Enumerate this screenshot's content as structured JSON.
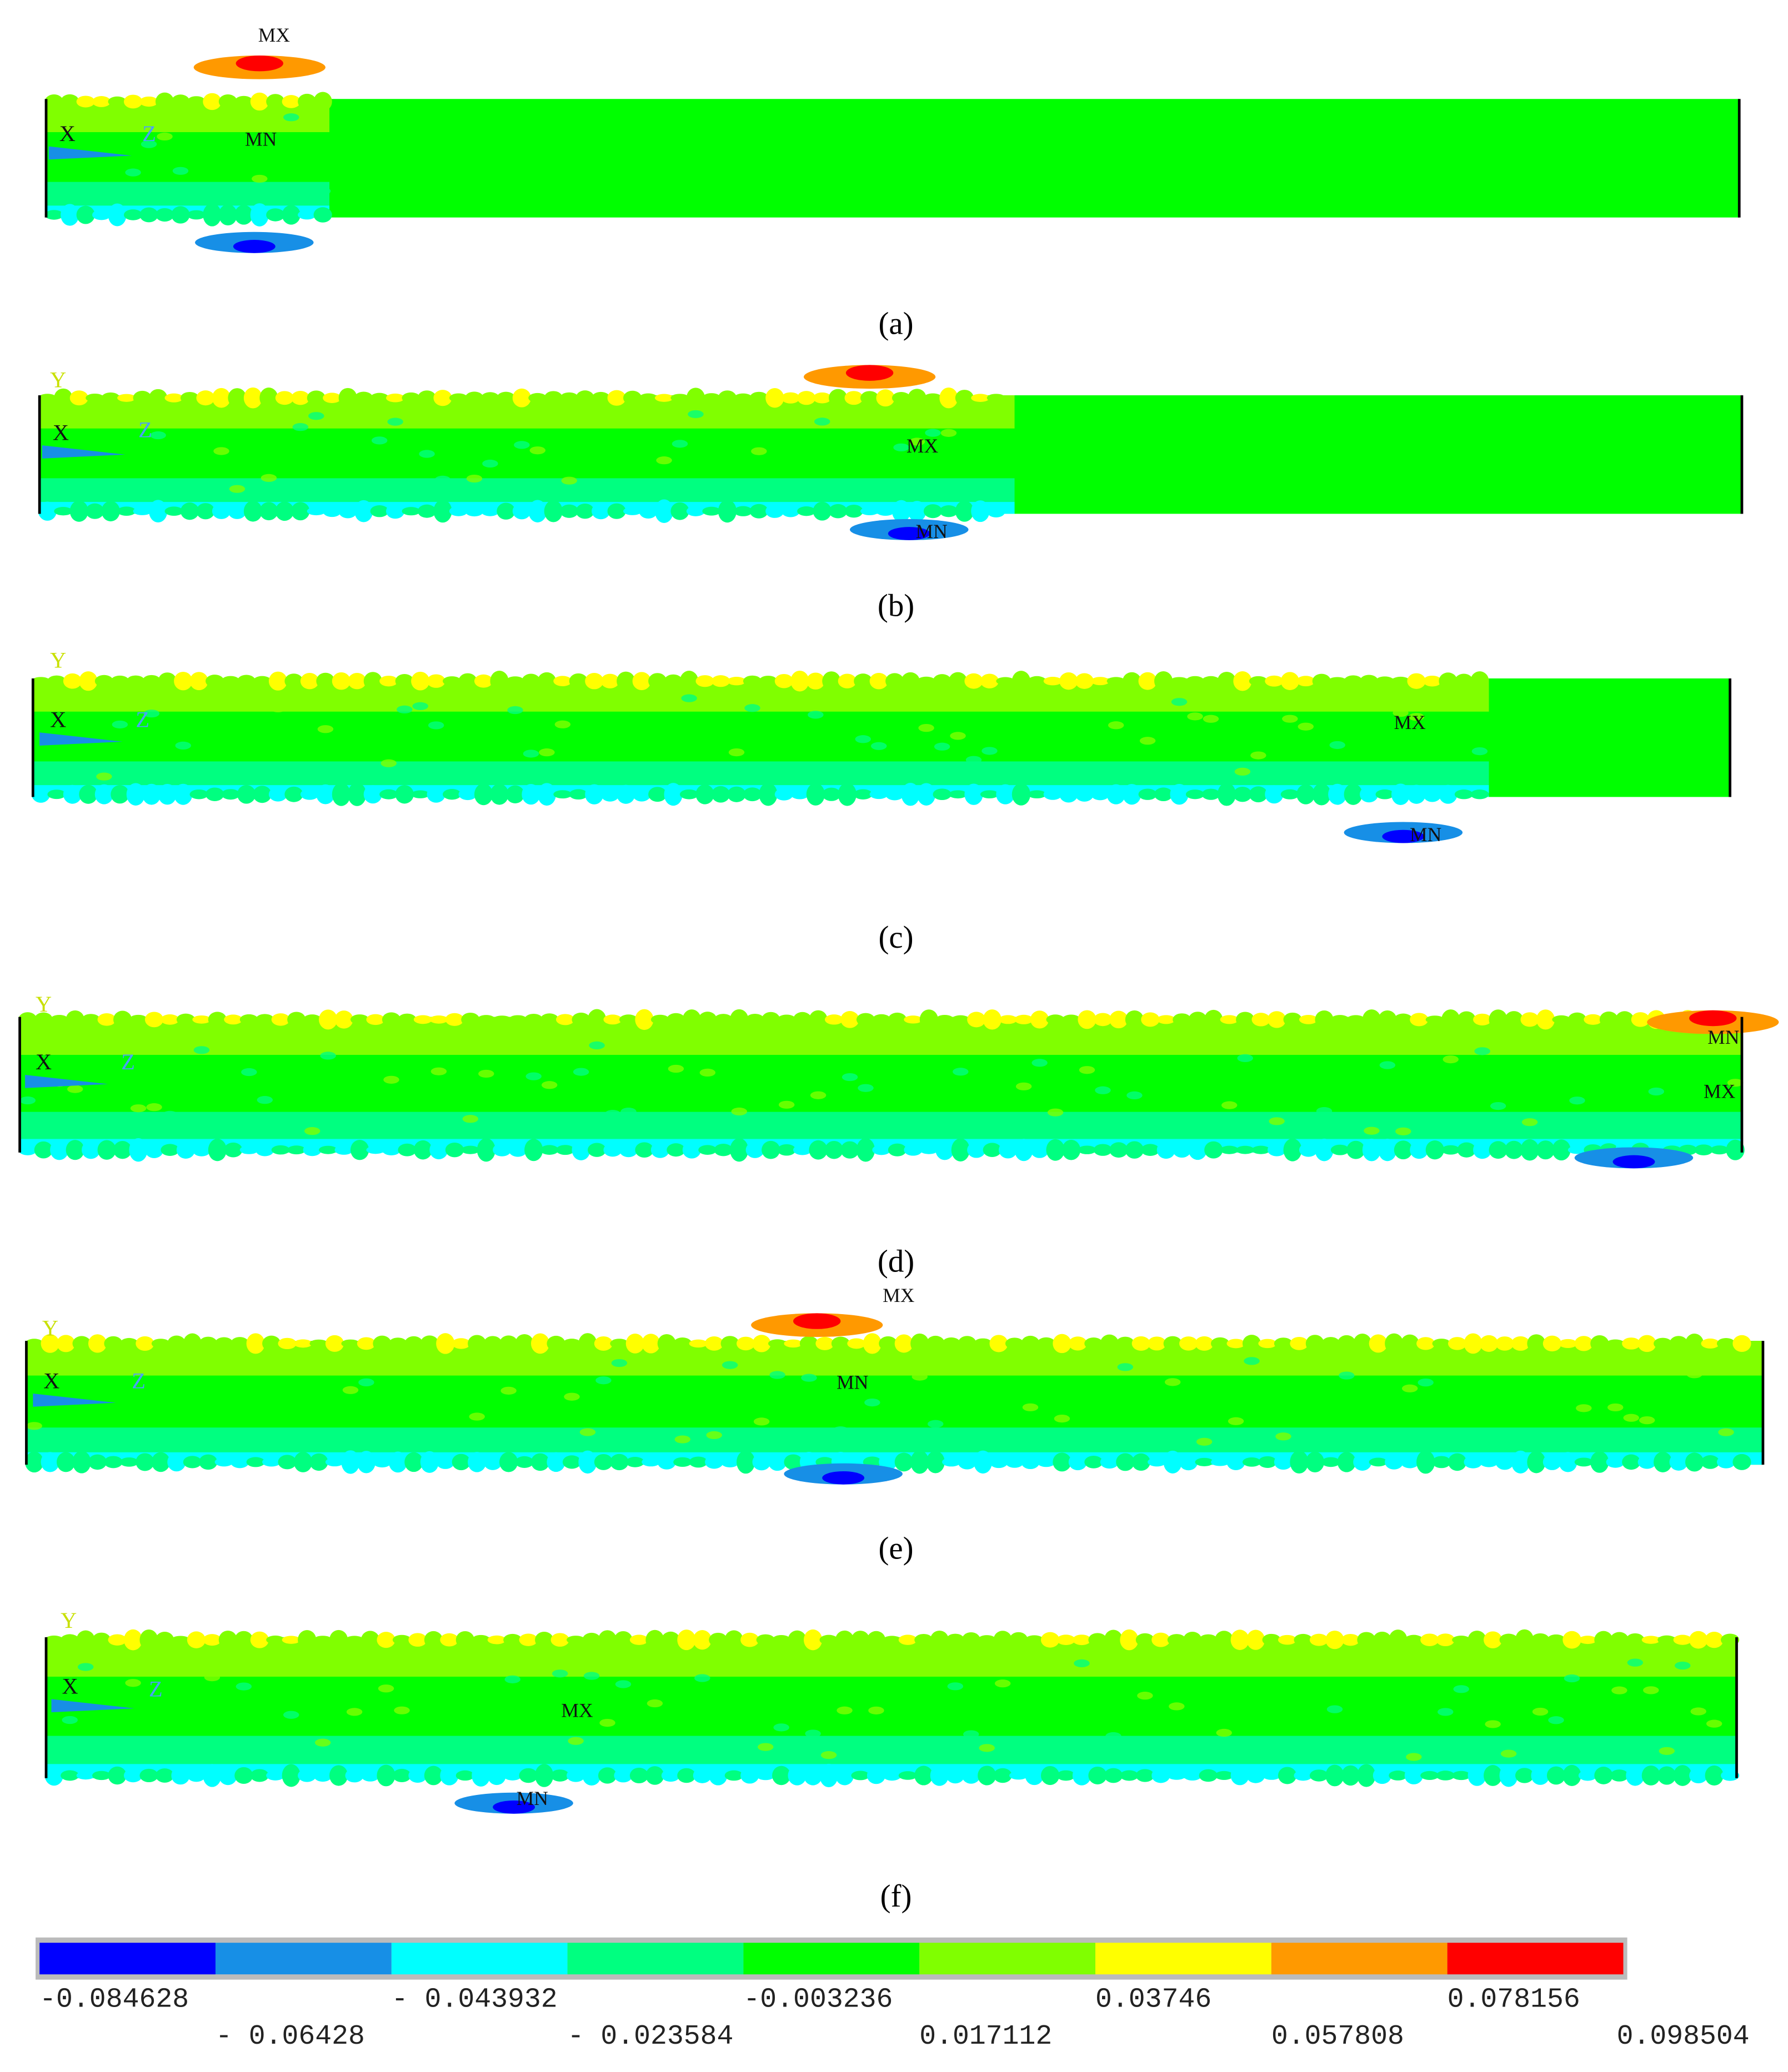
{
  "panels": [
    {
      "caption": "(a)",
      "max_label": "MX",
      "min_label": "MN",
      "axes": [
        "X",
        "Z"
      ]
    },
    {
      "caption": "(b)",
      "max_label": "MX",
      "min_label": "MN",
      "axes": [
        "Y",
        "X",
        "Z"
      ]
    },
    {
      "caption": "(c)",
      "max_label": "MX",
      "min_label": "MN",
      "axes": [
        "Y",
        "X",
        "Z"
      ]
    },
    {
      "caption": "(d)",
      "max_label": "MX",
      "min_label": "MN",
      "axes": [
        "Y",
        "X",
        "Z"
      ]
    },
    {
      "caption": "(e)",
      "max_label": "MX",
      "min_label": "MN",
      "axes": [
        "Y",
        "X",
        "Z"
      ]
    },
    {
      "caption": "(f)",
      "max_label": "MX",
      "min_label": "MN",
      "axes": [
        "Y",
        "X",
        "Z"
      ]
    }
  ],
  "colorbar": {
    "colors": [
      "#0000ff",
      "#178fe6",
      "#00ffff",
      "#00ff80",
      "#00ff00",
      "#80ff00",
      "#ffff00",
      "#ff9900",
      "#ff0000"
    ],
    "labels": [
      "-0.084628",
      "- 0.06428",
      "- 0.043932",
      "- 0.023584",
      "-0.003236",
      "0.017112",
      "0.03746",
      "0.057808",
      "0.078156",
      "0.098504"
    ]
  }
}
